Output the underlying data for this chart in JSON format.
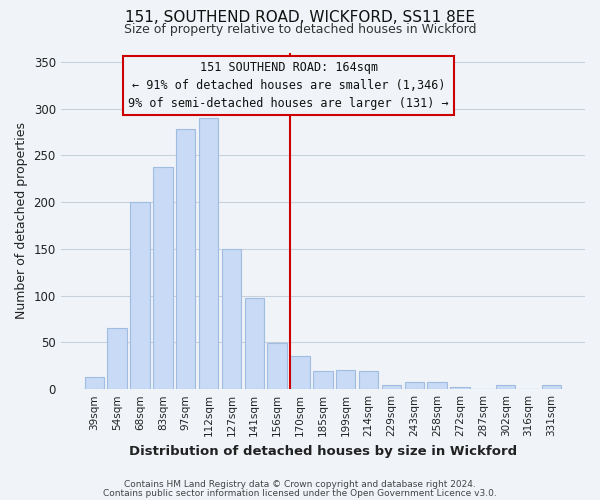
{
  "title": "151, SOUTHEND ROAD, WICKFORD, SS11 8EE",
  "subtitle": "Size of property relative to detached houses in Wickford",
  "xlabel": "Distribution of detached houses by size in Wickford",
  "ylabel": "Number of detached properties",
  "footer_line1": "Contains HM Land Registry data © Crown copyright and database right 2024.",
  "footer_line2": "Contains public sector information licensed under the Open Government Licence v3.0.",
  "bar_labels": [
    "39sqm",
    "54sqm",
    "68sqm",
    "83sqm",
    "97sqm",
    "112sqm",
    "127sqm",
    "141sqm",
    "156sqm",
    "170sqm",
    "185sqm",
    "199sqm",
    "214sqm",
    "229sqm",
    "243sqm",
    "258sqm",
    "272sqm",
    "287sqm",
    "302sqm",
    "316sqm",
    "331sqm"
  ],
  "bar_values": [
    13,
    65,
    200,
    238,
    278,
    290,
    150,
    97,
    49,
    35,
    19,
    20,
    19,
    4,
    8,
    8,
    2,
    0,
    5,
    0,
    5
  ],
  "bar_color": "#c8daf5",
  "bar_edge_color": "#a0bce0",
  "annotation_line1": "151 SOUTHEND ROAD: 164sqm",
  "annotation_line2": "← 91% of detached houses are smaller (1,346)",
  "annotation_line3": "9% of semi-detached houses are larger (131) →",
  "annotation_box_edge_color": "#cc0000",
  "vline_color": "#cc0000",
  "vline_x": 8.58,
  "ylim": [
    0,
    360
  ],
  "yticks": [
    0,
    50,
    100,
    150,
    200,
    250,
    300,
    350
  ],
  "grid_color": "#c8d0dc",
  "background_color": "#f0f4f8",
  "plot_bg_color": "#f0f4f8",
  "title_fontsize": 11,
  "subtitle_fontsize": 9,
  "axis_fontsize": 9,
  "tick_fontsize": 7.5,
  "footer_fontsize": 6.5,
  "annotation_fontsize": 8.5
}
